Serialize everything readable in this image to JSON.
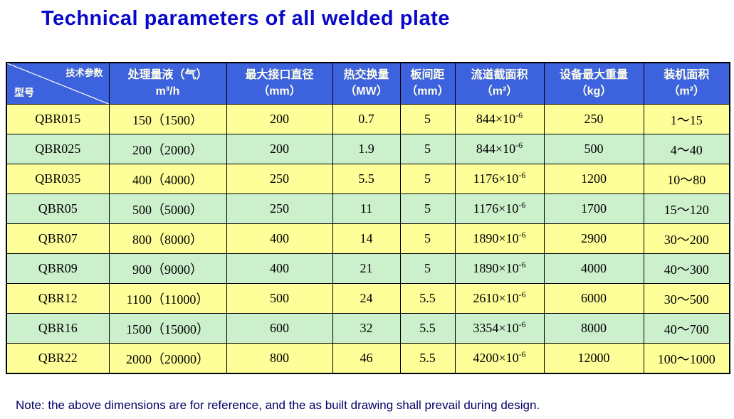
{
  "page": {
    "title": "Technical parameters of all welded plate",
    "note": "Note: the above dimensions are for reference, and the as built drawing shall prevail during design."
  },
  "table": {
    "corner": {
      "top_label": "技术参数",
      "bottom_label": "型号"
    },
    "columns": [
      {
        "line1": "处理量液（气）",
        "line2": "m³/h"
      },
      {
        "line1": "最大接口直径",
        "line2": "（mm）"
      },
      {
        "line1": "热交换量",
        "line2": "（MW）"
      },
      {
        "line1": "板间距",
        "line2": "（mm）"
      },
      {
        "line1": "流道截面积",
        "line2": "（m²）"
      },
      {
        "line1": "设备最大重量",
        "line2": "（kg）"
      },
      {
        "line1": "装机面积",
        "line2": "（m²）"
      }
    ],
    "rows": [
      {
        "model": "QBR015",
        "capacity": "150（1500）",
        "max_port_diameter": "200",
        "heat_exchange": "0.7",
        "plate_spacing": "5",
        "flow_area_base": "844×10",
        "flow_area_exp": "-6",
        "max_weight": "250",
        "installed_area": "1～15"
      },
      {
        "model": "QBR025",
        "capacity": "200（2000）",
        "max_port_diameter": "200",
        "heat_exchange": "1.9",
        "plate_spacing": "5",
        "flow_area_base": "844×10",
        "flow_area_exp": "-6",
        "max_weight": "500",
        "installed_area": "4～40"
      },
      {
        "model": "QBR035",
        "capacity": "400（4000）",
        "max_port_diameter": "250",
        "heat_exchange": "5.5",
        "plate_spacing": "5",
        "flow_area_base": "1176×10",
        "flow_area_exp": "-6",
        "max_weight": "1200",
        "installed_area": "10～80"
      },
      {
        "model": "QBR05",
        "capacity": "500（5000）",
        "max_port_diameter": "250",
        "heat_exchange": "11",
        "plate_spacing": "5",
        "flow_area_base": "1176×10",
        "flow_area_exp": "-6",
        "max_weight": "1700",
        "installed_area": "15～120"
      },
      {
        "model": "QBR07",
        "capacity": "800（8000）",
        "max_port_diameter": "400",
        "heat_exchange": "14",
        "plate_spacing": "5",
        "flow_area_base": "1890×10",
        "flow_area_exp": "-6",
        "max_weight": "2900",
        "installed_area": "30～200"
      },
      {
        "model": "QBR09",
        "capacity": "900（9000）",
        "max_port_diameter": "400",
        "heat_exchange": "21",
        "plate_spacing": "5",
        "flow_area_base": "1890×10",
        "flow_area_exp": "-6",
        "max_weight": "4000",
        "installed_area": "40～300"
      },
      {
        "model": "QBR12",
        "capacity": "1100（11000）",
        "max_port_diameter": "500",
        "heat_exchange": "24",
        "plate_spacing": "5.5",
        "flow_area_base": "2610×10",
        "flow_area_exp": "-6",
        "max_weight": "6000",
        "installed_area": "30～500"
      },
      {
        "model": "QBR16",
        "capacity": "1500（15000）",
        "max_port_diameter": "600",
        "heat_exchange": "32",
        "plate_spacing": "5.5",
        "flow_area_base": "3354×10",
        "flow_area_exp": "-6",
        "max_weight": "8000",
        "installed_area": "40～700"
      },
      {
        "model": "QBR22",
        "capacity": "2000（20000）",
        "max_port_diameter": "800",
        "heat_exchange": "46",
        "plate_spacing": "5.5",
        "flow_area_base": "4200×10",
        "flow_area_exp": "-6",
        "max_weight": "12000",
        "installed_area": "100～1000"
      }
    ]
  },
  "colors": {
    "title_blue": "#0808CC",
    "header_bg": "#3D62DD",
    "header_text": "#FFFFE8",
    "row_yellow": "#FFFF99",
    "row_green": "#CCF0CC",
    "note_navy": "#000066",
    "border": "#000000"
  }
}
